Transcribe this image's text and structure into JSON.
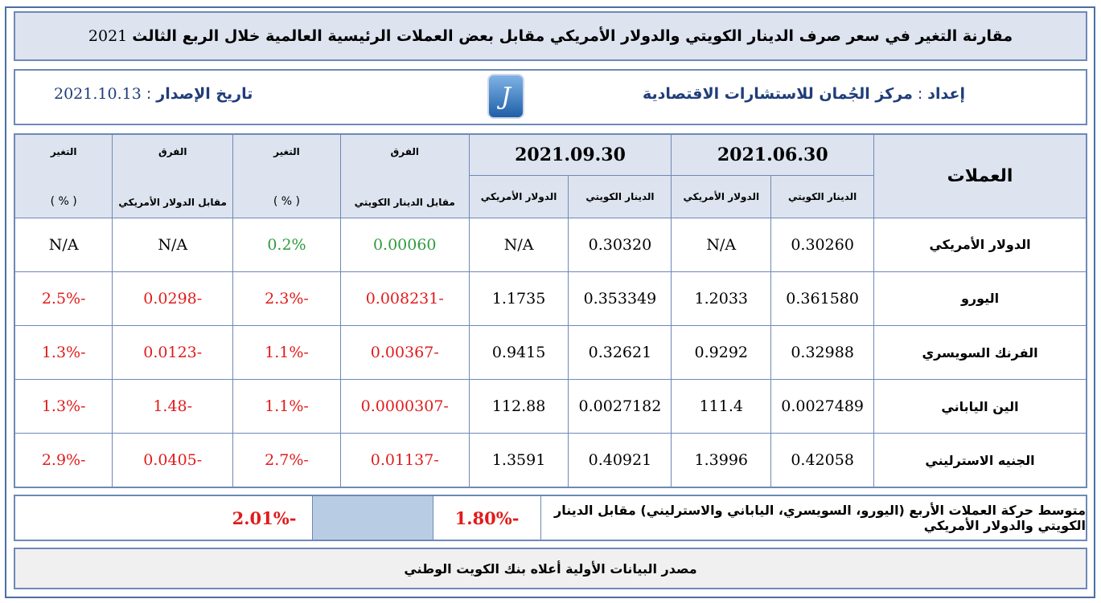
{
  "title": {
    "text": "مقارنة التغير في سعر صرف الدينار الكويتي والدولار الأمريكي مقابل بعض العملات الرئيسية العالمية خلال الربع الثالث",
    "year": "2021"
  },
  "info": {
    "prep_label": "إعداد",
    "prep_sep": ":",
    "prep_value": "مركز الجُمان للاستشارات الاقتصادية",
    "issue_label": "تاريخ الإصدار",
    "issue_sep": ":",
    "issue_value": "2021.10.13",
    "logo_glyph": "J"
  },
  "table": {
    "currencies_header": "العملات",
    "date1": "2021.06.30",
    "date2": "2021.09.30",
    "kwd_col": "الدينار الكويتي",
    "usd_col": "الدولار الأمريكي",
    "diff_label": "الفرق",
    "diff_kwd_label": "مقابل الدينار الكويتي",
    "change_label": "التغير",
    "change_pct": "( % )",
    "diff_usd_label": "مقابل الدولار الأمريكي",
    "rows": [
      {
        "name": "الدولار الأمريكي",
        "kwd1": "0.30260",
        "usd1": "N/A",
        "kwd2": "0.30320",
        "usd2": "N/A",
        "diff_kwd": "0.00060",
        "chg_kwd": "0.2%",
        "diff_usd": "N/A",
        "chg_usd": "N/A"
      },
      {
        "name": "اليورو",
        "kwd1": "0.361580",
        "usd1": "1.2033",
        "kwd2": "0.353349",
        "usd2": "1.1735",
        "diff_kwd": "-0.008231",
        "chg_kwd": "-2.3%",
        "diff_usd": "-0.0298",
        "chg_usd": "-2.5%"
      },
      {
        "name": "الفرنك السويسري",
        "kwd1": "0.32988",
        "usd1": "0.9292",
        "kwd2": "0.32621",
        "usd2": "0.9415",
        "diff_kwd": "-0.00367",
        "chg_kwd": "-1.1%",
        "diff_usd": "-0.0123",
        "chg_usd": "-1.3%"
      },
      {
        "name": "الين الياباني",
        "kwd1": "0.0027489",
        "usd1": "111.4",
        "kwd2": "0.0027182",
        "usd2": "112.88",
        "diff_kwd": "-0.0000307",
        "chg_kwd": "-1.1%",
        "diff_usd": "-1.48",
        "chg_usd": "-1.3%"
      },
      {
        "name": "الجنيه الاسترليني",
        "kwd1": "0.42058",
        "usd1": "1.3996",
        "kwd2": "0.40921",
        "usd2": "1.3591",
        "diff_kwd": "-0.01137",
        "chg_kwd": "-2.7%",
        "diff_usd": "-0.0405",
        "chg_usd": "-2.9%"
      }
    ]
  },
  "summary": {
    "label": "متوسط حركة العملات الأربع (اليورو، السويسري، الياباني والاسترليني) مقابل الدينار الكويتي والدولار الأمريكي",
    "avg_kwd": "-1.80%",
    "avg_usd": "-2.01%"
  },
  "source": "مصدر البيانات الأولية أعلاه بنك الكويت الوطني",
  "colors": {
    "positive": "#2e9b3e",
    "negative": "#e11b1b",
    "header_bg": "#dde4ef",
    "border": "#6d89b7"
  }
}
